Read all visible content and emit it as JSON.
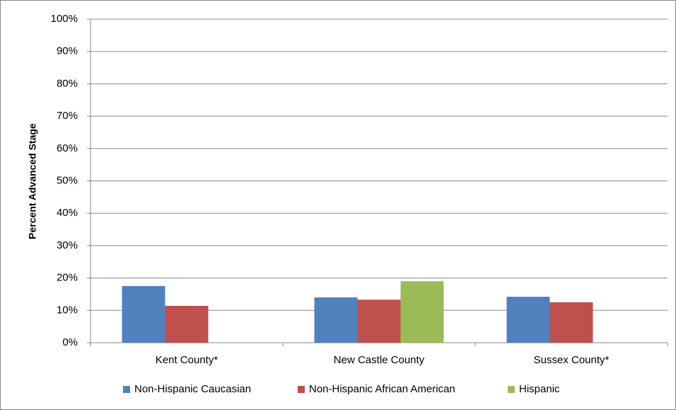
{
  "chart_data": {
    "type": "bar",
    "y_label": "Percent Advanced Stage",
    "categories": [
      "Kent County*",
      "New Castle County",
      "Sussex County*"
    ],
    "series": [
      {
        "name": "Non-Hispanic Caucasian",
        "color": "#4f81bd",
        "values": [
          17.5,
          14.0,
          14.2
        ]
      },
      {
        "name": "Non-Hispanic African American",
        "color": "#c0504d",
        "values": [
          11.4,
          13.3,
          12.5
        ]
      },
      {
        "name": "Hispanic",
        "color": "#9bbb59",
        "values": [
          null,
          19.0,
          null
        ]
      }
    ],
    "ylim": [
      0,
      100
    ],
    "yticks": [
      {
        "value": 0,
        "label": "0%"
      },
      {
        "value": 10,
        "label": "10%"
      },
      {
        "value": 20,
        "label": "20%"
      },
      {
        "value": 30,
        "label": "30%"
      },
      {
        "value": 40,
        "label": "40%"
      },
      {
        "value": 50,
        "label": "50%"
      },
      {
        "value": 60,
        "label": "60%"
      },
      {
        "value": 70,
        "label": "70%"
      },
      {
        "value": 80,
        "label": "80%"
      },
      {
        "value": 90,
        "label": "90%"
      },
      {
        "value": 100,
        "label": "100%"
      }
    ],
    "grid": true
  }
}
